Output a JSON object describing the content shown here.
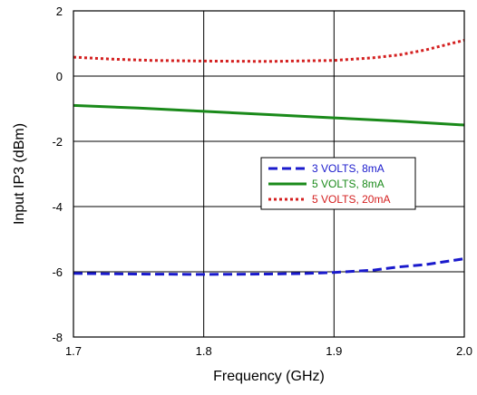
{
  "chart_data": {
    "type": "line",
    "xlabel": "Frequency (GHz)",
    "ylabel": "Input IP3 (dBm)",
    "xlim": [
      1.7,
      2.0
    ],
    "ylim": [
      -8,
      2
    ],
    "x_ticks": [
      "1.7",
      "1.8",
      "1.9",
      "2.0"
    ],
    "y_ticks": [
      "2",
      "0",
      "-2",
      "-4",
      "-6",
      "-8"
    ],
    "grid": true,
    "legend_position": "center-right",
    "series": [
      {
        "name": "3 VOLTS, 8mA",
        "color": "#1a1acc",
        "style": "dashed",
        "x": [
          1.7,
          1.75,
          1.8,
          1.85,
          1.88,
          1.9,
          1.93,
          1.95,
          1.97,
          2.0
        ],
        "y": [
          -6.05,
          -6.07,
          -6.08,
          -6.07,
          -6.05,
          -6.02,
          -5.95,
          -5.85,
          -5.78,
          -5.6
        ]
      },
      {
        "name": "5 VOLTS, 8mA",
        "color": "#1a8a1a",
        "style": "solid",
        "x": [
          1.7,
          1.75,
          1.8,
          1.85,
          1.9,
          1.95,
          2.0
        ],
        "y": [
          -0.9,
          -0.98,
          -1.08,
          -1.18,
          -1.28,
          -1.38,
          -1.5
        ]
      },
      {
        "name": "5 VOLTS, 20mA",
        "color": "#d42020",
        "style": "dotted",
        "x": [
          1.7,
          1.73,
          1.76,
          1.8,
          1.85,
          1.9,
          1.93,
          1.95,
          1.97,
          1.99,
          2.0
        ],
        "y": [
          0.58,
          0.52,
          0.48,
          0.46,
          0.45,
          0.48,
          0.56,
          0.65,
          0.8,
          1.0,
          1.1
        ]
      }
    ]
  }
}
